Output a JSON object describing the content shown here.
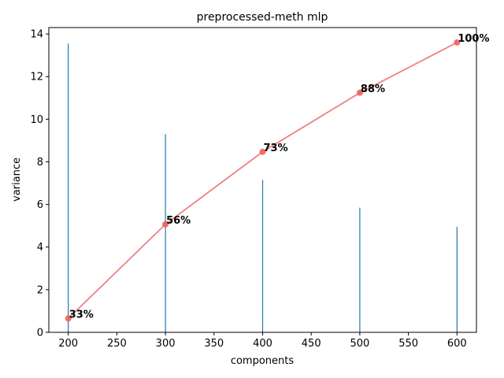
{
  "chart_data": {
    "type": "bar",
    "title": "preprocessed-meth mlp",
    "xlabel": "components",
    "ylabel": "variance",
    "xlim": [
      180,
      620
    ],
    "ylim": [
      0,
      14.3
    ],
    "xticks": [
      200,
      250,
      300,
      350,
      400,
      450,
      500,
      550,
      600
    ],
    "yticks": [
      0,
      2,
      4,
      6,
      8,
      10,
      12,
      14
    ],
    "grid": false,
    "bar_color": "#1f77b4",
    "line_color": "#f08080",
    "series": [
      {
        "type": "bar",
        "x": [
          200,
          300,
          400,
          500,
          600
        ],
        "values": [
          13.55,
          9.3,
          7.15,
          5.85,
          4.95
        ]
      },
      {
        "type": "line",
        "x": [
          200,
          300,
          400,
          500,
          600
        ],
        "values": [
          0.65,
          5.07,
          8.47,
          11.24,
          13.6
        ],
        "labels": [
          "33%",
          "56%",
          "73%",
          "88%",
          "100%"
        ]
      }
    ]
  }
}
